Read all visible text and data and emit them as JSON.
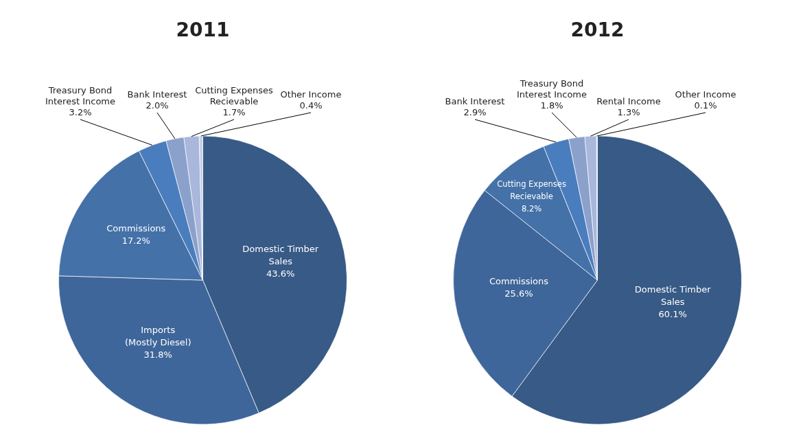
{
  "chart_data": [
    {
      "type": "pie",
      "title": "2011",
      "categories": [
        "Domestic Timber Sales",
        "Imports (Mostly Diesel)",
        "Commissions",
        "Treasury Bond Interest Income",
        "Bank Interest",
        "Cutting Expenses Recievable",
        "Other Income"
      ],
      "values": [
        43.6,
        31.8,
        17.2,
        3.2,
        2.0,
        1.7,
        0.4
      ],
      "value_labels": [
        "43.6%",
        "31.8%",
        "17.2%",
        "3.2%",
        "2.0%",
        "1.7%",
        "0.4%"
      ],
      "colors": [
        "#375a86",
        "#3f669a",
        "#4471a8",
        "#4a7dbd",
        "#8ba1cb",
        "#a8b7db",
        "#c6d0e6"
      ]
    },
    {
      "type": "pie",
      "title": "2012",
      "categories": [
        "Domestic Timber Sales",
        "Commissions",
        "Cutting Expenses Recievable",
        "Bank Interest",
        "Treasury Bond Interest Income",
        "Rental Income",
        "Other Income"
      ],
      "values": [
        60.1,
        25.6,
        8.2,
        2.9,
        1.8,
        1.3,
        0.1
      ],
      "value_labels": [
        "60.1%",
        "25.6%",
        "8.2%",
        "2.9%",
        "1.8%",
        "1.3%",
        "0.1%"
      ],
      "colors": [
        "#375a86",
        "#3f669a",
        "#4471a8",
        "#4a7dbd",
        "#8ba1cb",
        "#a8b7db",
        "#c6d0e6"
      ]
    }
  ]
}
